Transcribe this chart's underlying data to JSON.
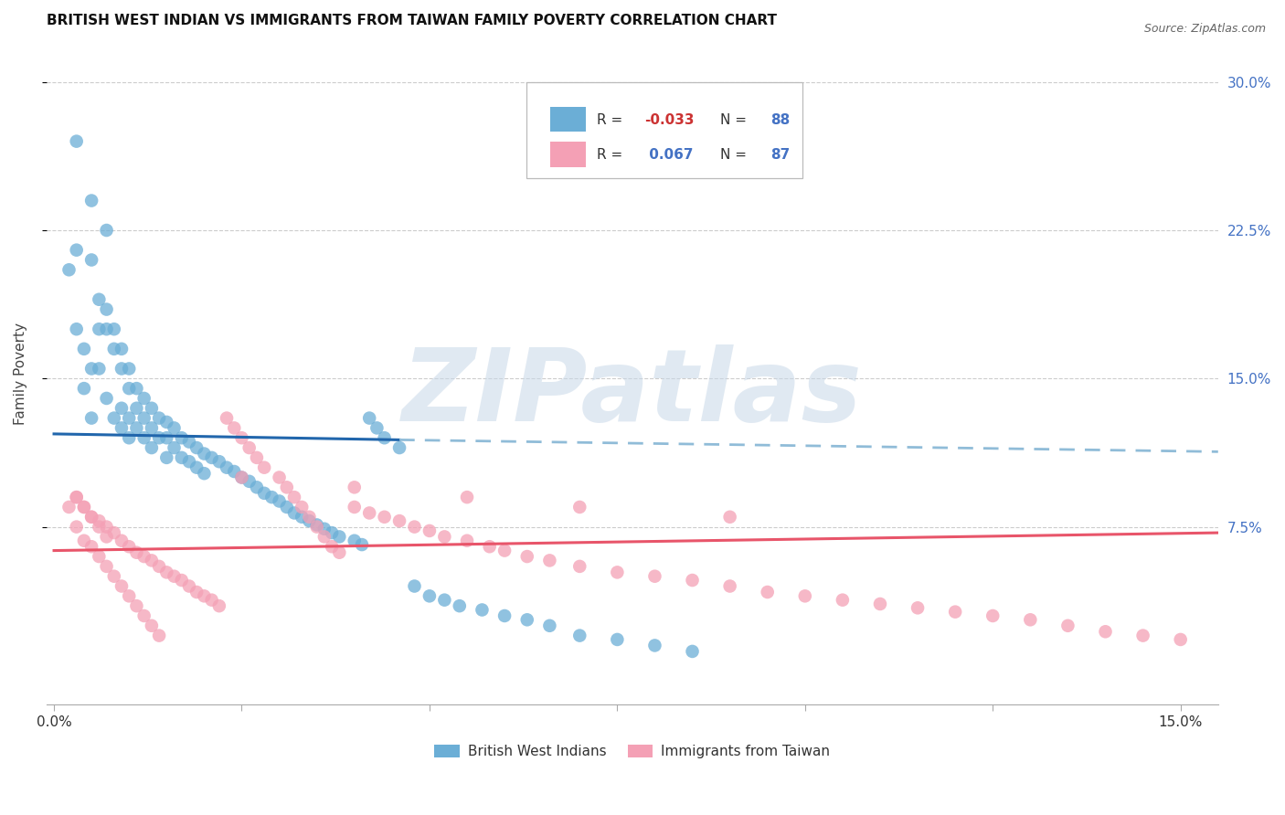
{
  "title": "BRITISH WEST INDIAN VS IMMIGRANTS FROM TAIWAN FAMILY POVERTY CORRELATION CHART",
  "source": "Source: ZipAtlas.com",
  "ylabel": "Family Poverty",
  "xlim": [
    -0.001,
    0.155
  ],
  "ylim": [
    -0.015,
    0.32
  ],
  "blue_R": -0.033,
  "blue_N": 88,
  "pink_R": 0.067,
  "pink_N": 87,
  "blue_color": "#6baed6",
  "pink_color": "#f4a0b5",
  "blue_line_color": "#2166ac",
  "pink_line_color": "#e8556a",
  "dashed_line_color": "#90bcd8",
  "watermark_text": "ZIPatlas",
  "legend_label_blue": "British West Indians",
  "legend_label_pink": "Immigrants from Taiwan",
  "blue_line_start_x": 0.0,
  "blue_line_solid_end_x": 0.046,
  "blue_line_end_x": 0.155,
  "blue_line_y_at_0": 0.122,
  "blue_line_y_at_046": 0.119,
  "blue_line_y_at_155": 0.113,
  "pink_line_start_x": 0.0,
  "pink_line_end_x": 0.155,
  "pink_line_y_at_0": 0.063,
  "pink_line_y_at_155": 0.072
}
